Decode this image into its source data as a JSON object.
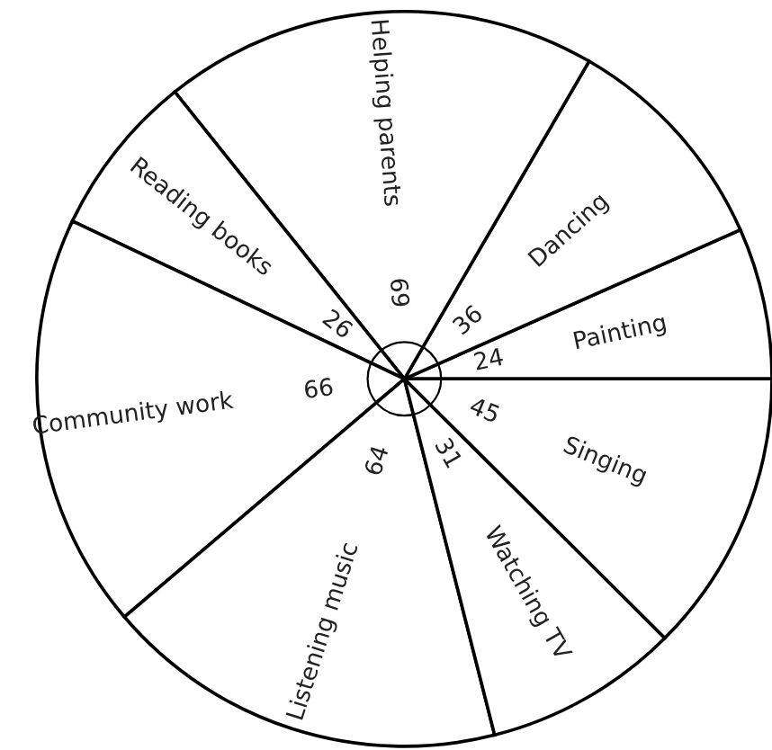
{
  "chart_data": {
    "type": "pie",
    "categories": [
      "Painting",
      "Dancing",
      "Helping parents",
      "Reading books",
      "Community work",
      "Listening music",
      "Watching TV",
      "Singing"
    ],
    "values": [
      24,
      36,
      69,
      26,
      66,
      64,
      31,
      45
    ],
    "colors": [
      "#ffffff",
      "#ffffff",
      "#ffffff",
      "#ffffff",
      "#ffffff",
      "#ffffff",
      "#ffffff",
      "#ffffff"
    ],
    "data_labels": true
  }
}
